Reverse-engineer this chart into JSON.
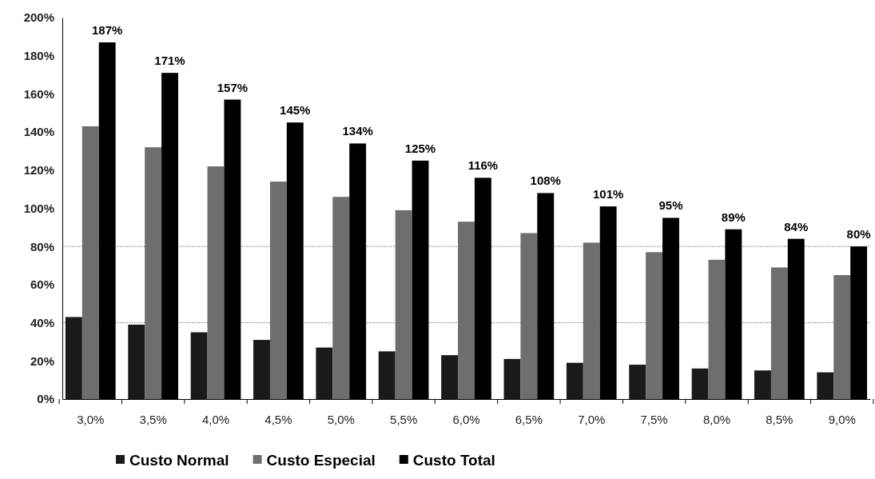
{
  "chart_data": {
    "type": "bar",
    "categories": [
      "3,0%",
      "3,5%",
      "4,0%",
      "4,5%",
      "5,0%",
      "5,5%",
      "6,0%",
      "6,5%",
      "7,0%",
      "7,5%",
      "8,0%",
      "8,5%",
      "9,0%"
    ],
    "series": [
      {
        "name": "Custo Normal",
        "color": "#1a1a1a",
        "values": [
          43,
          39,
          35,
          31,
          27,
          25,
          23,
          21,
          19,
          18,
          16,
          15,
          14
        ]
      },
      {
        "name": "Custo Especial",
        "color": "#6e6e6e",
        "values": [
          143,
          132,
          122,
          114,
          106,
          99,
          93,
          87,
          82,
          77,
          73,
          69,
          65
        ]
      },
      {
        "name": "Custo Total",
        "color": "#000000",
        "values": [
          187,
          171,
          157,
          145,
          134,
          125,
          116,
          108,
          101,
          95,
          89,
          84,
          80
        ],
        "value_labels": [
          "187%",
          "171%",
          "157%",
          "145%",
          "134%",
          "125%",
          "116%",
          "108%",
          "101%",
          "95%",
          "89%",
          "84%",
          "80%"
        ]
      }
    ],
    "ylim": [
      0,
      200
    ],
    "yticks": [
      {
        "value": 0,
        "label": "0%"
      },
      {
        "value": 20,
        "label": "20%"
      },
      {
        "value": 40,
        "label": "40%"
      },
      {
        "value": 60,
        "label": "60%"
      },
      {
        "value": 80,
        "label": "80%"
      },
      {
        "value": 100,
        "label": "100%"
      },
      {
        "value": 120,
        "label": "120%"
      },
      {
        "value": 140,
        "label": "140%"
      },
      {
        "value": 160,
        "label": "160%"
      },
      {
        "value": 180,
        "label": "180%"
      },
      {
        "value": 200,
        "label": "200%"
      }
    ],
    "ref_lines": [
      {
        "axis": "y",
        "value": 40,
        "color": "#777777",
        "line_style": "dotted"
      },
      {
        "axis": "y",
        "value": 80,
        "color": "#777777",
        "line_style": "dotted"
      }
    ],
    "grid": false,
    "legend": "bottom"
  }
}
